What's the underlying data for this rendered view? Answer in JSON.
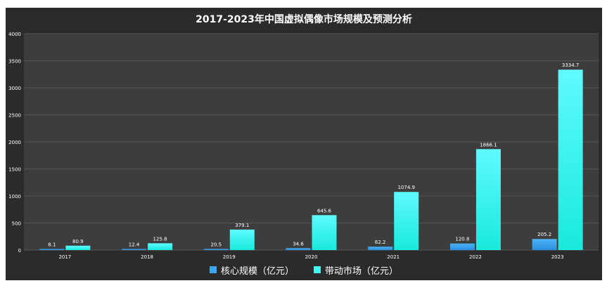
{
  "chart_data": {
    "type": "bar",
    "title": "2017-2023年中国虚拟偶像市场规模及预测分析",
    "categories": [
      "2017",
      "2018",
      "2019",
      "2020",
      "2021",
      "2022",
      "2023"
    ],
    "series": [
      {
        "name": "核心规模（亿元）",
        "values": [
          8.1,
          12.4,
          20.5,
          34.6,
          62.2,
          120.8,
          205.2
        ],
        "color": "#3aa6ee"
      },
      {
        "name": "带动市场（亿元）",
        "values": [
          80.9,
          125.8,
          379.1,
          645.6,
          1074.9,
          1866.1,
          3334.7
        ],
        "color": "#3ff7f2"
      }
    ],
    "yticks": [
      "0",
      "500",
      "1000",
      "1500",
      "2000",
      "2500",
      "3000",
      "3500",
      "4000"
    ],
    "ylim": [
      0,
      4000
    ],
    "xlabel": "",
    "ylabel": "",
    "grid": true,
    "legend": "bottom"
  }
}
